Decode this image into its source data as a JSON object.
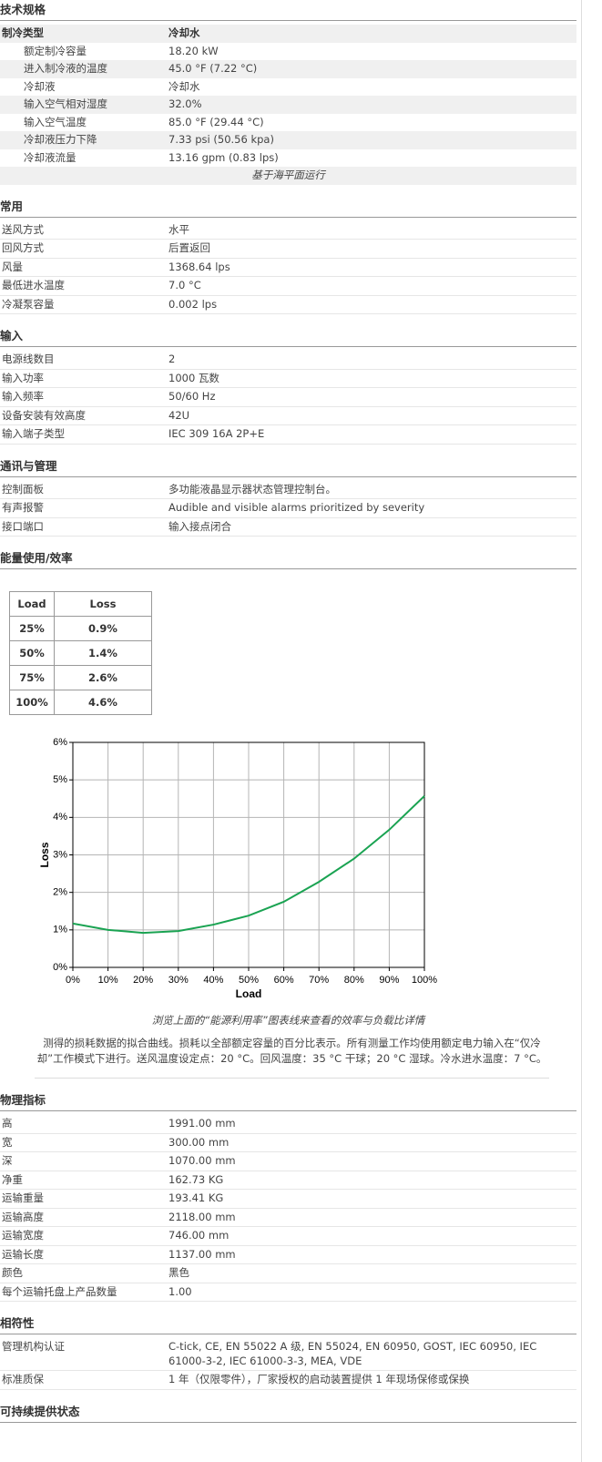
{
  "sections": [
    {
      "title": "技术规格",
      "header": [
        "制冷类型",
        "冷却水"
      ],
      "rows": [
        [
          "额定制冷容量",
          "18.20 kW"
        ],
        [
          "进入制冷液的温度",
          "45.0 °F (7.22 °C)"
        ],
        [
          "冷却液",
          "冷却水"
        ],
        [
          "输入空气相对湿度",
          "32.0%"
        ],
        [
          "输入空气温度",
          "85.0 °F (29.44 °C)"
        ],
        [
          "冷却液压力下降",
          "7.33 psi (50.56 kpa)"
        ],
        [
          "冷却液流量",
          "13.16 gpm (0.83 lps)"
        ]
      ],
      "note": "基于海平面运行"
    },
    {
      "title": "常用",
      "rows": [
        [
          "送风方式",
          "水平"
        ],
        [
          "回风方式",
          "后置返回"
        ],
        [
          "风量",
          "1368.64 lps"
        ],
        [
          "最低进水温度",
          "7.0 °C"
        ],
        [
          "冷凝泵容量",
          "0.002 lps"
        ]
      ]
    },
    {
      "title": "输入",
      "rows": [
        [
          "电源线数目",
          "2"
        ],
        [
          "输入功率",
          "1000 瓦数"
        ],
        [
          "输入频率",
          "50/60 Hz"
        ],
        [
          "设备安装有效高度",
          "42U"
        ],
        [
          "输入端子类型",
          "IEC 309 16A 2P+E"
        ]
      ]
    },
    {
      "title": "通讯与管理",
      "rows": [
        [
          "控制面板",
          "多功能液晶显示器状态管理控制台。"
        ],
        [
          "有声报警",
          "Audible and visible alarms prioritized by severity"
        ],
        [
          "接口端口",
          "输入接点闭合"
        ]
      ]
    },
    {
      "title": "能量使用/效率",
      "table": {
        "header": [
          "Load",
          "Loss"
        ],
        "rows": [
          [
            "25%",
            "0.9%"
          ],
          [
            "50%",
            "1.4%"
          ],
          [
            "75%",
            "2.6%"
          ],
          [
            "100%",
            "4.6%"
          ]
        ]
      },
      "caption": "浏览上面的“能源利用率”图表线来查看的效率与负载比详情",
      "description": "测得的损耗数据的拟合曲线。损耗以全部额定容量的百分比表示。所有测量工作均使用额定电力输入在“仅冷却”工作模式下进行。送风温度设定点：20 °C。回风温度：35 °C 干球；20 °C 湿球。冷水进水温度：7 °C。"
    },
    {
      "title": "物理指标",
      "rows": [
        [
          "高",
          "1991.00 mm"
        ],
        [
          "宽",
          "300.00 mm"
        ],
        [
          "深",
          "1070.00 mm"
        ],
        [
          "净重",
          "162.73 KG"
        ],
        [
          "运输重量",
          "193.41 KG"
        ],
        [
          "运输高度",
          "2118.00 mm"
        ],
        [
          "运输宽度",
          "746.00 mm"
        ],
        [
          "运输长度",
          "1137.00 mm"
        ],
        [
          "颜色",
          "黑色"
        ],
        [
          "每个运输托盘上产品数量",
          "1.00"
        ]
      ]
    },
    {
      "title": "相符性",
      "rows": [
        [
          "管理机构认证",
          "C-tick, CE, EN 55022 A 级, EN 55024, EN 60950, GOST, IEC 60950, IEC 61000-3-2, IEC 61000-3-3, MEA, VDE"
        ],
        [
          "标准质保",
          "1 年（仅限零件），厂家授权的启动装置提供 1 年现场保修或保换"
        ]
      ]
    },
    {
      "title": "可持续提供状态"
    }
  ],
  "chart_data": {
    "type": "line",
    "x_label": "Load",
    "y_label": "Loss",
    "x": [
      0,
      10,
      20,
      30,
      40,
      50,
      60,
      70,
      80,
      90,
      100
    ],
    "series": [
      {
        "color": "#1aa352",
        "values": [
          1.17,
          1.0,
          0.92,
          0.97,
          1.14,
          1.38,
          1.75,
          2.28,
          2.9,
          3.67,
          4.57
        ]
      }
    ],
    "xlim": [
      0,
      100
    ],
    "ylim": [
      0,
      6
    ],
    "xticks": [
      {
        "value": 0,
        "label": "0%"
      },
      {
        "value": 10,
        "label": "10%"
      },
      {
        "value": 20,
        "label": "20%"
      },
      {
        "value": 30,
        "label": "30%"
      },
      {
        "value": 40,
        "label": "40%"
      },
      {
        "value": 50,
        "label": "50%"
      },
      {
        "value": 60,
        "label": "60%"
      },
      {
        "value": 70,
        "label": "70%"
      },
      {
        "value": 80,
        "label": "80%"
      },
      {
        "value": 90,
        "label": "90%"
      },
      {
        "value": 100,
        "label": "100%"
      }
    ],
    "yticks": [
      {
        "value": 0,
        "label": "0%"
      },
      {
        "value": 1,
        "label": "1%"
      },
      {
        "value": 2,
        "label": "2%"
      },
      {
        "value": 3,
        "label": "3%"
      },
      {
        "value": 4,
        "label": "4%"
      },
      {
        "value": 5,
        "label": "5%"
      },
      {
        "value": 6,
        "label": "6%"
      }
    ],
    "grid": true
  }
}
